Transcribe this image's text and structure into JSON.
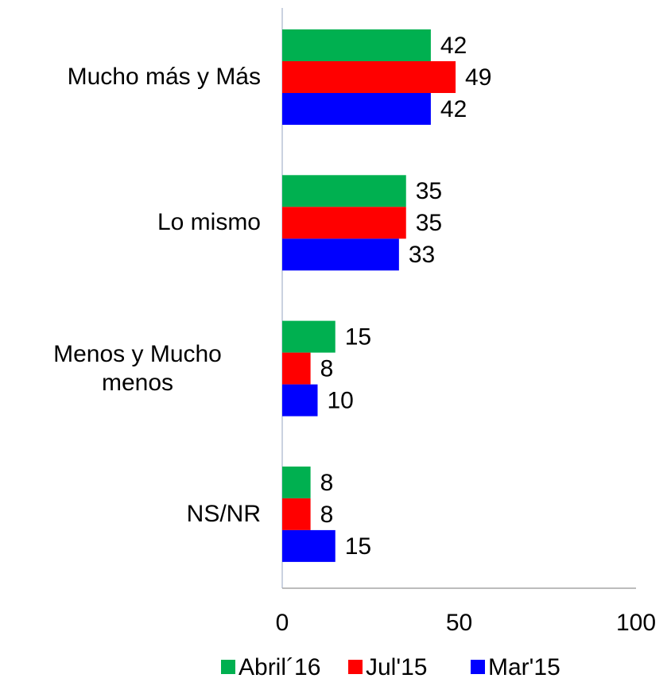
{
  "chart_data": {
    "type": "hbar",
    "categories": [
      "Mucho más y Más",
      "Lo mismo",
      "Menos y Mucho menos",
      "NS/NR"
    ],
    "series": [
      {
        "name": "Abril´16",
        "color": "#00b050",
        "values": [
          42,
          35,
          15,
          8
        ]
      },
      {
        "name": "Jul'15",
        "color": "#ff0000",
        "values": [
          49,
          35,
          8,
          8
        ]
      },
      {
        "name": "Mar'15",
        "color": "#0000ff",
        "values": [
          42,
          33,
          10,
          15
        ]
      }
    ],
    "xlim": [
      0,
      100
    ],
    "xticks": [
      0,
      50,
      100
    ],
    "legend": "bottom"
  }
}
